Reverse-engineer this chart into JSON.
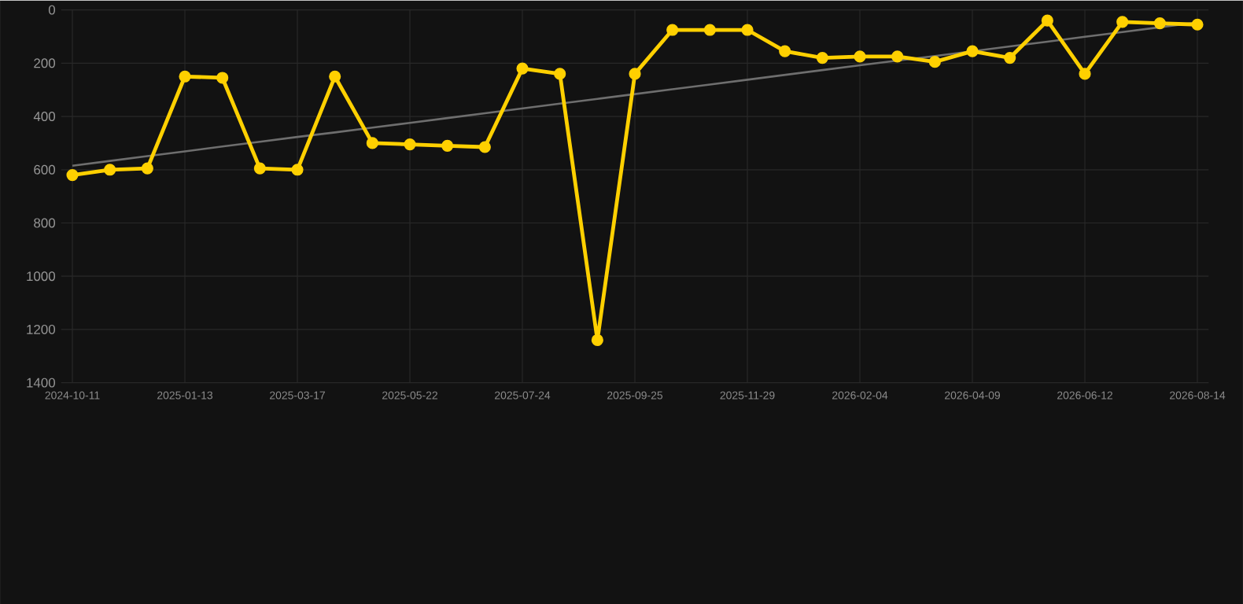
{
  "chart_data": {
    "type": "line",
    "categories": [
      "2024-10-11",
      null,
      null,
      "2025-01-13",
      null,
      null,
      "2025-03-17",
      null,
      null,
      "2025-05-22",
      null,
      null,
      "2025-07-24",
      null,
      null,
      "2025-09-25",
      null,
      null,
      "2025-11-29",
      null,
      null,
      "2026-02-04",
      null,
      null,
      "2026-04-09",
      null,
      null,
      "2026-06-12",
      null,
      null,
      "2026-08-14"
    ],
    "series": [
      {
        "color": "#6e6e6e",
        "marker": "none",
        "values": [
          585,
          567,
          549,
          531,
          513,
          495,
          477,
          460,
          442,
          424,
          406,
          388,
          370,
          352,
          334,
          316,
          298,
          280,
          262,
          244,
          226,
          208,
          190,
          173,
          155,
          137,
          119,
          101,
          83,
          65,
          47
        ]
      },
      {
        "color": "#ffd000",
        "marker": "circle",
        "values": [
          620,
          600,
          595,
          250,
          255,
          595,
          600,
          250,
          500,
          505,
          510,
          515,
          220,
          240,
          1240,
          240,
          75,
          75,
          75,
          155,
          180,
          175,
          175,
          195,
          155,
          180,
          40,
          240,
          45,
          50,
          55
        ]
      }
    ],
    "ylim": [
      1400,
      0
    ],
    "yticks": [
      0,
      200,
      400,
      600,
      800,
      1000,
      1200,
      1400
    ],
    "grid": true
  }
}
